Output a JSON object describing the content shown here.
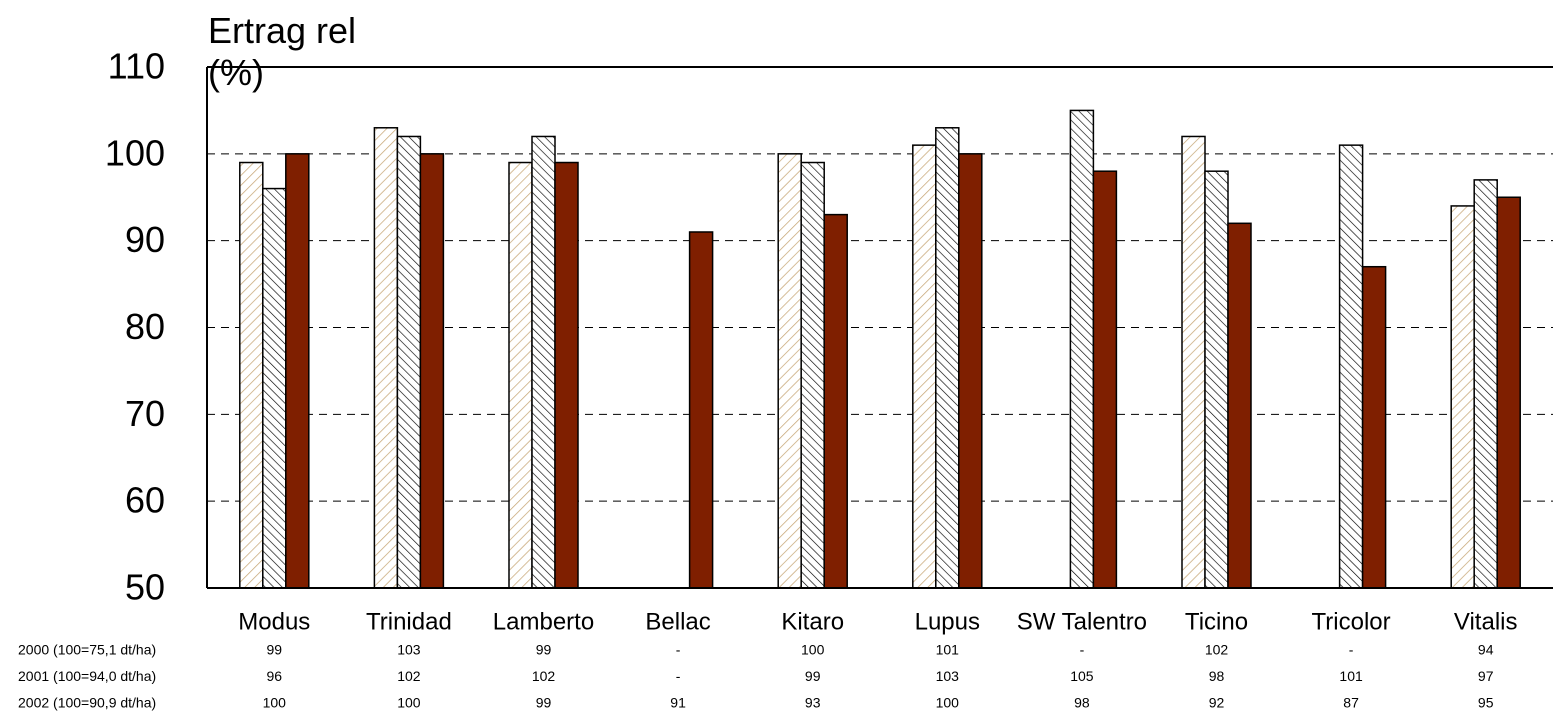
{
  "chart_data": {
    "type": "bar",
    "title": "Ertrag rel (%)",
    "categories": [
      "Modus",
      "Trinidad",
      "Lamberto",
      "Bellac",
      "Kitaro",
      "Lupus",
      "SW Talentro",
      "Ticino",
      "Tricolor",
      "Vitalis"
    ],
    "series": [
      {
        "name": "2000 (100=75,1 dt/ha)",
        "color": "#c8a878",
        "pattern": "hatch-forward",
        "values": [
          99,
          103,
          99,
          null,
          100,
          101,
          null,
          102,
          null,
          94
        ],
        "value_labels": [
          "99",
          "103",
          "99",
          "-",
          "100",
          "101",
          "-",
          "102",
          "-",
          "94"
        ]
      },
      {
        "name": "2001 (100=94,0 dt/ha)",
        "color": "#000000",
        "pattern": "hatch-back",
        "values": [
          96,
          102,
          102,
          null,
          99,
          103,
          105,
          98,
          101,
          97
        ],
        "value_labels": [
          "96",
          "102",
          "102",
          "-",
          "99",
          "103",
          "105",
          "98",
          "101",
          "97"
        ]
      },
      {
        "name": "2002 (100=90,9 dt/ha)",
        "color": "#7f1f00",
        "pattern": "solid",
        "values": [
          100,
          100,
          99,
          91,
          93,
          100,
          98,
          92,
          87,
          95
        ],
        "value_labels": [
          "100",
          "100",
          "99",
          "91",
          "93",
          "100",
          "98",
          "92",
          "87",
          "95"
        ]
      }
    ],
    "ylim": [
      50,
      110
    ],
    "yticks": [
      50,
      60,
      70,
      80,
      90,
      100,
      110
    ],
    "grid": true
  }
}
